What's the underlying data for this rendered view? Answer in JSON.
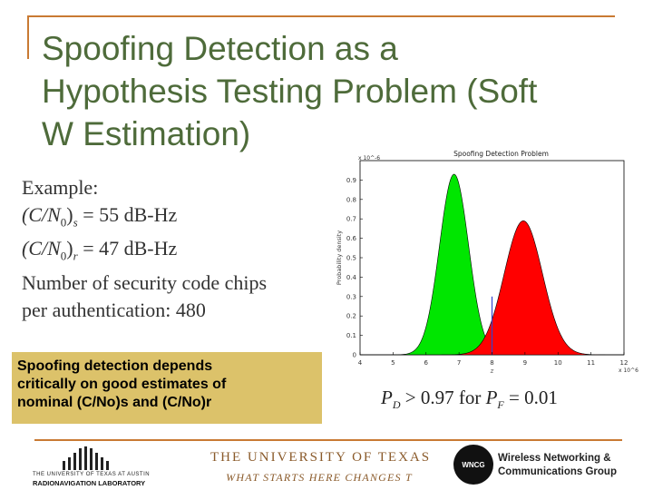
{
  "slide": {
    "title_lines": [
      "Spoofing Detection as a",
      "Hypothesis Testing Problem (Soft",
      "W Estimation)"
    ],
    "accent_color": "#c97a33",
    "title_color": "#4e6b3a"
  },
  "example": {
    "heading": "Example:",
    "line_s_label": "(C/N",
    "line_s_sub0": "0",
    "line_s_close": ")",
    "line_s_sub": "s",
    "line_s_value": " = 55 dB-Hz",
    "line_r_label": "(C/N",
    "line_r_sub0": "0",
    "line_r_close": ")",
    "line_r_sub": "r",
    "line_r_value": " = 47 dB-Hz",
    "line3": "Number of security code chips",
    "line4": "per authentication:  480"
  },
  "note": {
    "lines": [
      "Spoofing detection depends",
      "critically on good estimates of",
      "nominal (C/No)s  and  (C/No)r"
    ],
    "background": "#dcc26a"
  },
  "formula": {
    "pd": "P",
    "pd_sub": "D",
    "relation": " > 0.97 for ",
    "pf": "P",
    "pf_sub": "F",
    "value": " = 0.01"
  },
  "chart_data": {
    "type": "area",
    "title": "Spoofing Detection Problem",
    "xlabel": "z",
    "ylabel": "Probability density",
    "x_exponent": "x 10^6",
    "y_exponent": "x 10^-6",
    "xlim": [
      4,
      12
    ],
    "ylim": [
      0,
      1
    ],
    "xticks": [
      4,
      5,
      6,
      7,
      8,
      9,
      10,
      11,
      12
    ],
    "yticks": [
      0,
      0.1,
      0.2,
      0.3,
      0.4,
      0.5,
      0.6,
      0.7,
      0.8,
      0.9
    ],
    "threshold_x": 8,
    "grid": false,
    "series": [
      {
        "color": "#00e600",
        "mean": 6.85,
        "sd": 0.44,
        "peak": 0.93
      },
      {
        "color": "#ff0000",
        "mean": 8.95,
        "sd": 0.58,
        "peak": 0.69
      }
    ]
  },
  "footer": {
    "logo_left_line1": "THE UNIVERSITY OF TEXAS AT AUSTIN",
    "logo_left_line2": "RADIONAVIGATION LABORATORY",
    "ut_line1": "THE UNIVERSITY OF TEXAS",
    "ut_line2": "WHAT STARTS HERE CHANGES T",
    "wncg_badge": "WNCG",
    "wncg_line1": "Wireless Networking &",
    "wncg_line2": "Communications Group"
  }
}
